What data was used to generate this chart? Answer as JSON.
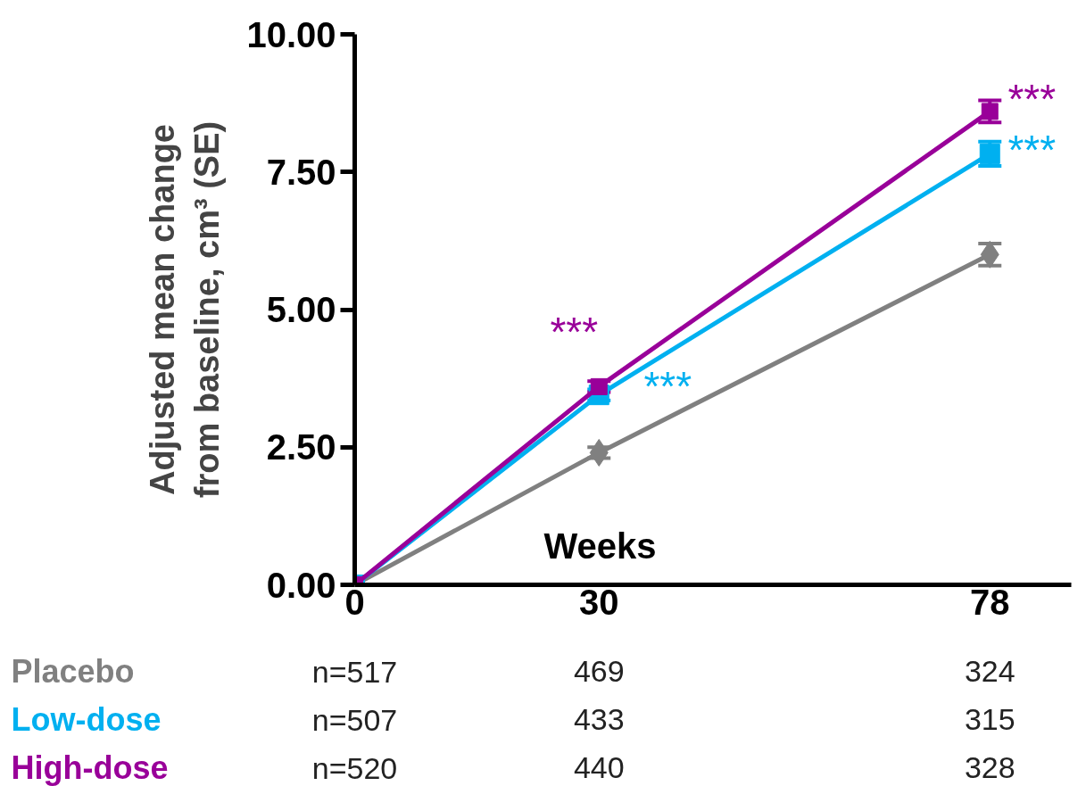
{
  "chart_data": {
    "type": "line",
    "xlabel": "Weeks",
    "ylabel": "Adjusted mean change\nfrom baseline, cm³ (SE)",
    "x": [
      0,
      30,
      78
    ],
    "series": [
      {
        "name": "Placebo",
        "color": "#808080",
        "values": [
          0,
          2.4,
          6.0
        ],
        "errors": [
          null,
          0.1,
          0.2
        ],
        "marker": "diamond"
      },
      {
        "name": "Low-dose",
        "color": "#00b0f0",
        "values": [
          0,
          3.45,
          7.83
        ],
        "errors": [
          null,
          0.1,
          0.22
        ],
        "marker": "square"
      },
      {
        "name": "High-dose",
        "color": "#990099",
        "values": [
          0,
          3.6,
          8.6
        ],
        "errors": [
          null,
          0.1,
          0.2
        ],
        "marker": "square"
      }
    ],
    "xlim": [
      0,
      88
    ],
    "xticks": [
      0,
      30,
      78
    ],
    "ylim": [
      0,
      10
    ],
    "yticks": [
      {
        "value": 0,
        "label": "0.00"
      },
      {
        "value": 2.5,
        "label": "2.50"
      },
      {
        "value": 5,
        "label": "5.00"
      },
      {
        "value": 7.5,
        "label": "7.50"
      },
      {
        "value": 10,
        "label": "10.00"
      }
    ],
    "grid": false,
    "legend": false,
    "line_style": "solid",
    "annotations": [
      "***",
      "***",
      "***",
      "***",
      "n=517",
      "469",
      "324",
      "n=507",
      "433",
      "315",
      "n=520",
      "440",
      "328"
    ]
  }
}
